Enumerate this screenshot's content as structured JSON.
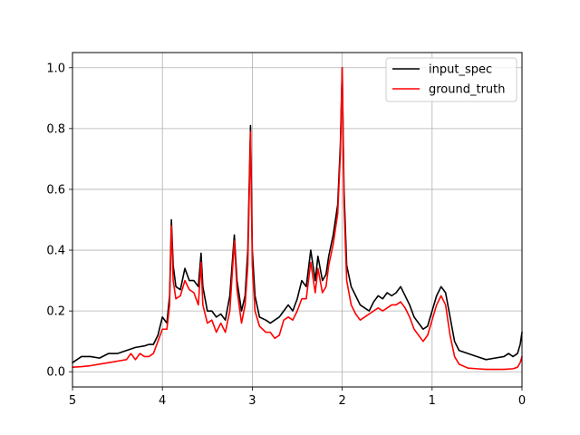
{
  "chart_data": {
    "type": "line",
    "title": "",
    "xlabel": "",
    "ylabel": "",
    "xlim": [
      5,
      0
    ],
    "x_inverted": true,
    "ylim": [
      -0.05,
      1.05
    ],
    "grid": true,
    "legend_position": "top-right",
    "xticks": [
      5,
      4,
      3,
      2,
      1,
      0
    ],
    "yticks": [
      0.0,
      0.2,
      0.4,
      0.6,
      0.8,
      1.0
    ],
    "xtick_labels": [
      "5",
      "4",
      "3",
      "2",
      "1",
      "0"
    ],
    "ytick_labels": [
      "0.0",
      "0.2",
      "0.4",
      "0.6",
      "0.8",
      "1.0"
    ],
    "series": [
      {
        "name": "input_spec",
        "color": "#000000",
        "points": [
          [
            5.0,
            0.03
          ],
          [
            4.9,
            0.05
          ],
          [
            4.8,
            0.05
          ],
          [
            4.7,
            0.045
          ],
          [
            4.6,
            0.06
          ],
          [
            4.5,
            0.06
          ],
          [
            4.4,
            0.07
          ],
          [
            4.3,
            0.08
          ],
          [
            4.2,
            0.085
          ],
          [
            4.15,
            0.09
          ],
          [
            4.1,
            0.09
          ],
          [
            4.05,
            0.12
          ],
          [
            4.0,
            0.18
          ],
          [
            3.95,
            0.16
          ],
          [
            3.92,
            0.25
          ],
          [
            3.9,
            0.5
          ],
          [
            3.88,
            0.35
          ],
          [
            3.85,
            0.28
          ],
          [
            3.8,
            0.27
          ],
          [
            3.75,
            0.34
          ],
          [
            3.7,
            0.3
          ],
          [
            3.65,
            0.3
          ],
          [
            3.6,
            0.28
          ],
          [
            3.57,
            0.39
          ],
          [
            3.55,
            0.28
          ],
          [
            3.5,
            0.2
          ],
          [
            3.45,
            0.2
          ],
          [
            3.4,
            0.18
          ],
          [
            3.35,
            0.19
          ],
          [
            3.3,
            0.17
          ],
          [
            3.25,
            0.25
          ],
          [
            3.2,
            0.45
          ],
          [
            3.17,
            0.3
          ],
          [
            3.12,
            0.2
          ],
          [
            3.08,
            0.25
          ],
          [
            3.05,
            0.4
          ],
          [
            3.02,
            0.81
          ],
          [
            3.0,
            0.4
          ],
          [
            2.97,
            0.25
          ],
          [
            2.92,
            0.18
          ],
          [
            2.85,
            0.17
          ],
          [
            2.8,
            0.16
          ],
          [
            2.75,
            0.17
          ],
          [
            2.7,
            0.18
          ],
          [
            2.65,
            0.2
          ],
          [
            2.6,
            0.22
          ],
          [
            2.55,
            0.2
          ],
          [
            2.5,
            0.24
          ],
          [
            2.45,
            0.3
          ],
          [
            2.4,
            0.28
          ],
          [
            2.35,
            0.4
          ],
          [
            2.3,
            0.3
          ],
          [
            2.27,
            0.38
          ],
          [
            2.22,
            0.3
          ],
          [
            2.18,
            0.32
          ],
          [
            2.15,
            0.38
          ],
          [
            2.1,
            0.45
          ],
          [
            2.05,
            0.55
          ],
          [
            2.02,
            0.75
          ],
          [
            2.0,
            1.0
          ],
          [
            1.98,
            0.6
          ],
          [
            1.95,
            0.35
          ],
          [
            1.9,
            0.28
          ],
          [
            1.85,
            0.25
          ],
          [
            1.8,
            0.22
          ],
          [
            1.75,
            0.21
          ],
          [
            1.7,
            0.2
          ],
          [
            1.65,
            0.23
          ],
          [
            1.6,
            0.25
          ],
          [
            1.55,
            0.24
          ],
          [
            1.5,
            0.26
          ],
          [
            1.45,
            0.25
          ],
          [
            1.4,
            0.26
          ],
          [
            1.35,
            0.28
          ],
          [
            1.3,
            0.25
          ],
          [
            1.25,
            0.22
          ],
          [
            1.2,
            0.18
          ],
          [
            1.15,
            0.16
          ],
          [
            1.1,
            0.14
          ],
          [
            1.05,
            0.15
          ],
          [
            1.0,
            0.2
          ],
          [
            0.95,
            0.25
          ],
          [
            0.9,
            0.28
          ],
          [
            0.85,
            0.26
          ],
          [
            0.8,
            0.18
          ],
          [
            0.75,
            0.1
          ],
          [
            0.7,
            0.07
          ],
          [
            0.6,
            0.06
          ],
          [
            0.5,
            0.05
          ],
          [
            0.4,
            0.04
          ],
          [
            0.3,
            0.045
          ],
          [
            0.2,
            0.05
          ],
          [
            0.15,
            0.06
          ],
          [
            0.1,
            0.05
          ],
          [
            0.05,
            0.06
          ],
          [
            0.02,
            0.09
          ],
          [
            0.0,
            0.13
          ]
        ]
      },
      {
        "name": "ground_truth",
        "color": "#ff0000",
        "points": [
          [
            5.0,
            0.015
          ],
          [
            4.9,
            0.017
          ],
          [
            4.8,
            0.02
          ],
          [
            4.7,
            0.025
          ],
          [
            4.6,
            0.03
          ],
          [
            4.5,
            0.035
          ],
          [
            4.4,
            0.04
          ],
          [
            4.35,
            0.06
          ],
          [
            4.3,
            0.04
          ],
          [
            4.25,
            0.06
          ],
          [
            4.2,
            0.05
          ],
          [
            4.15,
            0.05
          ],
          [
            4.1,
            0.06
          ],
          [
            4.05,
            0.1
          ],
          [
            4.0,
            0.14
          ],
          [
            3.95,
            0.14
          ],
          [
            3.92,
            0.22
          ],
          [
            3.9,
            0.48
          ],
          [
            3.88,
            0.3
          ],
          [
            3.85,
            0.24
          ],
          [
            3.8,
            0.25
          ],
          [
            3.75,
            0.3
          ],
          [
            3.7,
            0.27
          ],
          [
            3.65,
            0.26
          ],
          [
            3.6,
            0.22
          ],
          [
            3.57,
            0.36
          ],
          [
            3.55,
            0.22
          ],
          [
            3.5,
            0.16
          ],
          [
            3.45,
            0.17
          ],
          [
            3.4,
            0.13
          ],
          [
            3.35,
            0.16
          ],
          [
            3.3,
            0.13
          ],
          [
            3.25,
            0.2
          ],
          [
            3.2,
            0.43
          ],
          [
            3.17,
            0.27
          ],
          [
            3.12,
            0.16
          ],
          [
            3.08,
            0.22
          ],
          [
            3.05,
            0.35
          ],
          [
            3.02,
            0.79
          ],
          [
            3.0,
            0.35
          ],
          [
            2.97,
            0.2
          ],
          [
            2.92,
            0.15
          ],
          [
            2.85,
            0.13
          ],
          [
            2.8,
            0.13
          ],
          [
            2.75,
            0.11
          ],
          [
            2.7,
            0.12
          ],
          [
            2.65,
            0.17
          ],
          [
            2.6,
            0.18
          ],
          [
            2.55,
            0.17
          ],
          [
            2.5,
            0.2
          ],
          [
            2.45,
            0.24
          ],
          [
            2.4,
            0.24
          ],
          [
            2.35,
            0.36
          ],
          [
            2.3,
            0.26
          ],
          [
            2.27,
            0.34
          ],
          [
            2.22,
            0.26
          ],
          [
            2.18,
            0.28
          ],
          [
            2.15,
            0.35
          ],
          [
            2.1,
            0.42
          ],
          [
            2.05,
            0.52
          ],
          [
            2.02,
            0.72
          ],
          [
            2.0,
            1.0
          ],
          [
            1.98,
            0.55
          ],
          [
            1.95,
            0.3
          ],
          [
            1.9,
            0.22
          ],
          [
            1.85,
            0.19
          ],
          [
            1.8,
            0.17
          ],
          [
            1.75,
            0.18
          ],
          [
            1.7,
            0.19
          ],
          [
            1.65,
            0.2
          ],
          [
            1.6,
            0.21
          ],
          [
            1.55,
            0.2
          ],
          [
            1.5,
            0.21
          ],
          [
            1.45,
            0.22
          ],
          [
            1.4,
            0.22
          ],
          [
            1.35,
            0.23
          ],
          [
            1.3,
            0.21
          ],
          [
            1.25,
            0.18
          ],
          [
            1.2,
            0.14
          ],
          [
            1.15,
            0.12
          ],
          [
            1.1,
            0.1
          ],
          [
            1.05,
            0.12
          ],
          [
            1.0,
            0.17
          ],
          [
            0.95,
            0.22
          ],
          [
            0.9,
            0.25
          ],
          [
            0.85,
            0.22
          ],
          [
            0.8,
            0.12
          ],
          [
            0.75,
            0.05
          ],
          [
            0.7,
            0.025
          ],
          [
            0.6,
            0.012
          ],
          [
            0.5,
            0.01
          ],
          [
            0.4,
            0.008
          ],
          [
            0.3,
            0.008
          ],
          [
            0.2,
            0.008
          ],
          [
            0.1,
            0.01
          ],
          [
            0.05,
            0.015
          ],
          [
            0.02,
            0.03
          ],
          [
            0.0,
            0.05
          ]
        ]
      }
    ]
  }
}
